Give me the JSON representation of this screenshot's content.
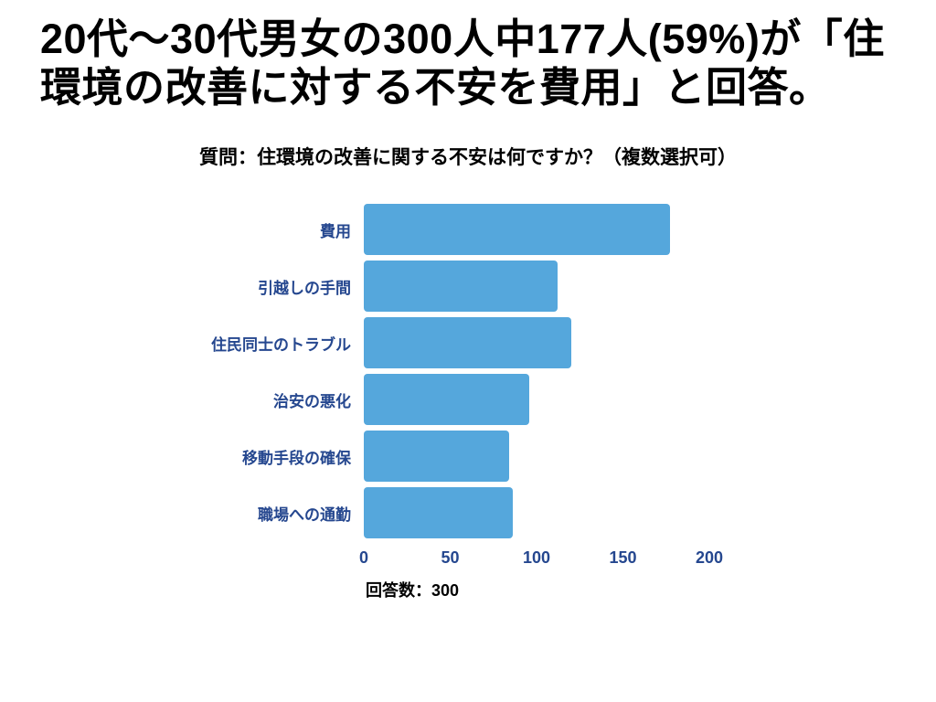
{
  "page": {
    "title": "20代〜30代男女の300人中177人(59%)が「住環境の改善に対する不安を費用」と回答。",
    "subtitle": "質問：住環境の改善に関する不安は何ですか？（複数選択可）"
  },
  "chart_data": {
    "type": "bar",
    "orientation": "horizontal",
    "title": "質問：住環境の改善に関する不安は何ですか？（複数選択可）",
    "categories": [
      "費用",
      "引越しの手間",
      "住民同士のトラブル",
      "治安の悪化",
      "移動手段の確保",
      "職場への通勤"
    ],
    "values": [
      177,
      112,
      120,
      96,
      84,
      86
    ],
    "xlim": [
      0,
      200
    ],
    "x_ticks": [
      0,
      50,
      100,
      150,
      200
    ],
    "xlabel": "回答数：300",
    "ylabel": "",
    "grid": false,
    "legend": false,
    "bar_color": "#55A7DC",
    "label_color": "#25478F",
    "title_color": "#000000"
  }
}
